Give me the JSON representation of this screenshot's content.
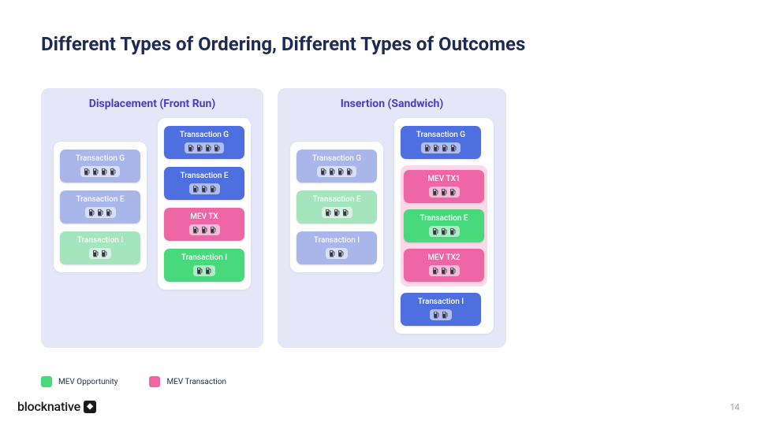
{
  "title": "Different Types of Ordering, Different Types of Outcomes",
  "colors": {
    "panel_bg": "#e5e6f7",
    "panel_title": "#4b3cc7",
    "title_color": "#1e2a53",
    "blue_primary": "#4e6fe0",
    "blue_faded": "#a9b6ea",
    "green_primary": "#48d97c",
    "green_faded": "#a5e5bd",
    "pink_primary": "#ef66a6",
    "fuel_icon": "#333344"
  },
  "panels": [
    {
      "title": "Displacement (Front Run)",
      "columns": [
        {
          "variant": "before",
          "items": [
            {
              "label": "Transaction G",
              "color": "#a9b6ea",
              "fuel": 4
            },
            {
              "label": "Transaction E",
              "color": "#a9b6ea",
              "fuel": 3
            },
            {
              "label": "Transaction I",
              "color": "#a5e5bd",
              "fuel": 2
            }
          ]
        },
        {
          "variant": "after",
          "items": [
            {
              "label": "Transaction G",
              "color": "#4e6fe0",
              "fuel": 4
            },
            {
              "label": "Transaction E",
              "color": "#4e6fe0",
              "fuel": 3
            },
            {
              "label": "MEV TX",
              "color": "#ef66a6",
              "fuel": 3
            },
            {
              "label": "Transaction I",
              "color": "#48d97c",
              "fuel": 2
            }
          ]
        }
      ]
    },
    {
      "title": "Insertion (Sandwich)",
      "columns": [
        {
          "variant": "before",
          "items": [
            {
              "label": "Transaction G",
              "color": "#a9b6ea",
              "fuel": 4
            },
            {
              "label": "Transaction E",
              "color": "#a5e5bd",
              "fuel": 3
            },
            {
              "label": "Transaction I",
              "color": "#a9b6ea",
              "fuel": 2
            }
          ]
        },
        {
          "variant": "after",
          "items": [
            {
              "label": "Transaction G",
              "color": "#4e6fe0",
              "fuel": 4
            },
            {
              "label": "MEV TX1",
              "color": "#ef66a6",
              "fuel": 3,
              "group": "sandwich"
            },
            {
              "label": "Transaction E",
              "color": "#48d97c",
              "fuel": 3,
              "group": "sandwich"
            },
            {
              "label": "MEV TX2",
              "color": "#ef66a6",
              "fuel": 3,
              "group": "sandwich"
            },
            {
              "label": "Transaction I",
              "color": "#4e6fe0",
              "fuel": 2
            }
          ]
        }
      ]
    }
  ],
  "legend": [
    {
      "swatch": "#48d97c",
      "label": "MEV Opportunity"
    },
    {
      "swatch": "#ef66a6",
      "label": "MEV Transaction"
    }
  ],
  "logo": "blocknative",
  "page_number": "14"
}
